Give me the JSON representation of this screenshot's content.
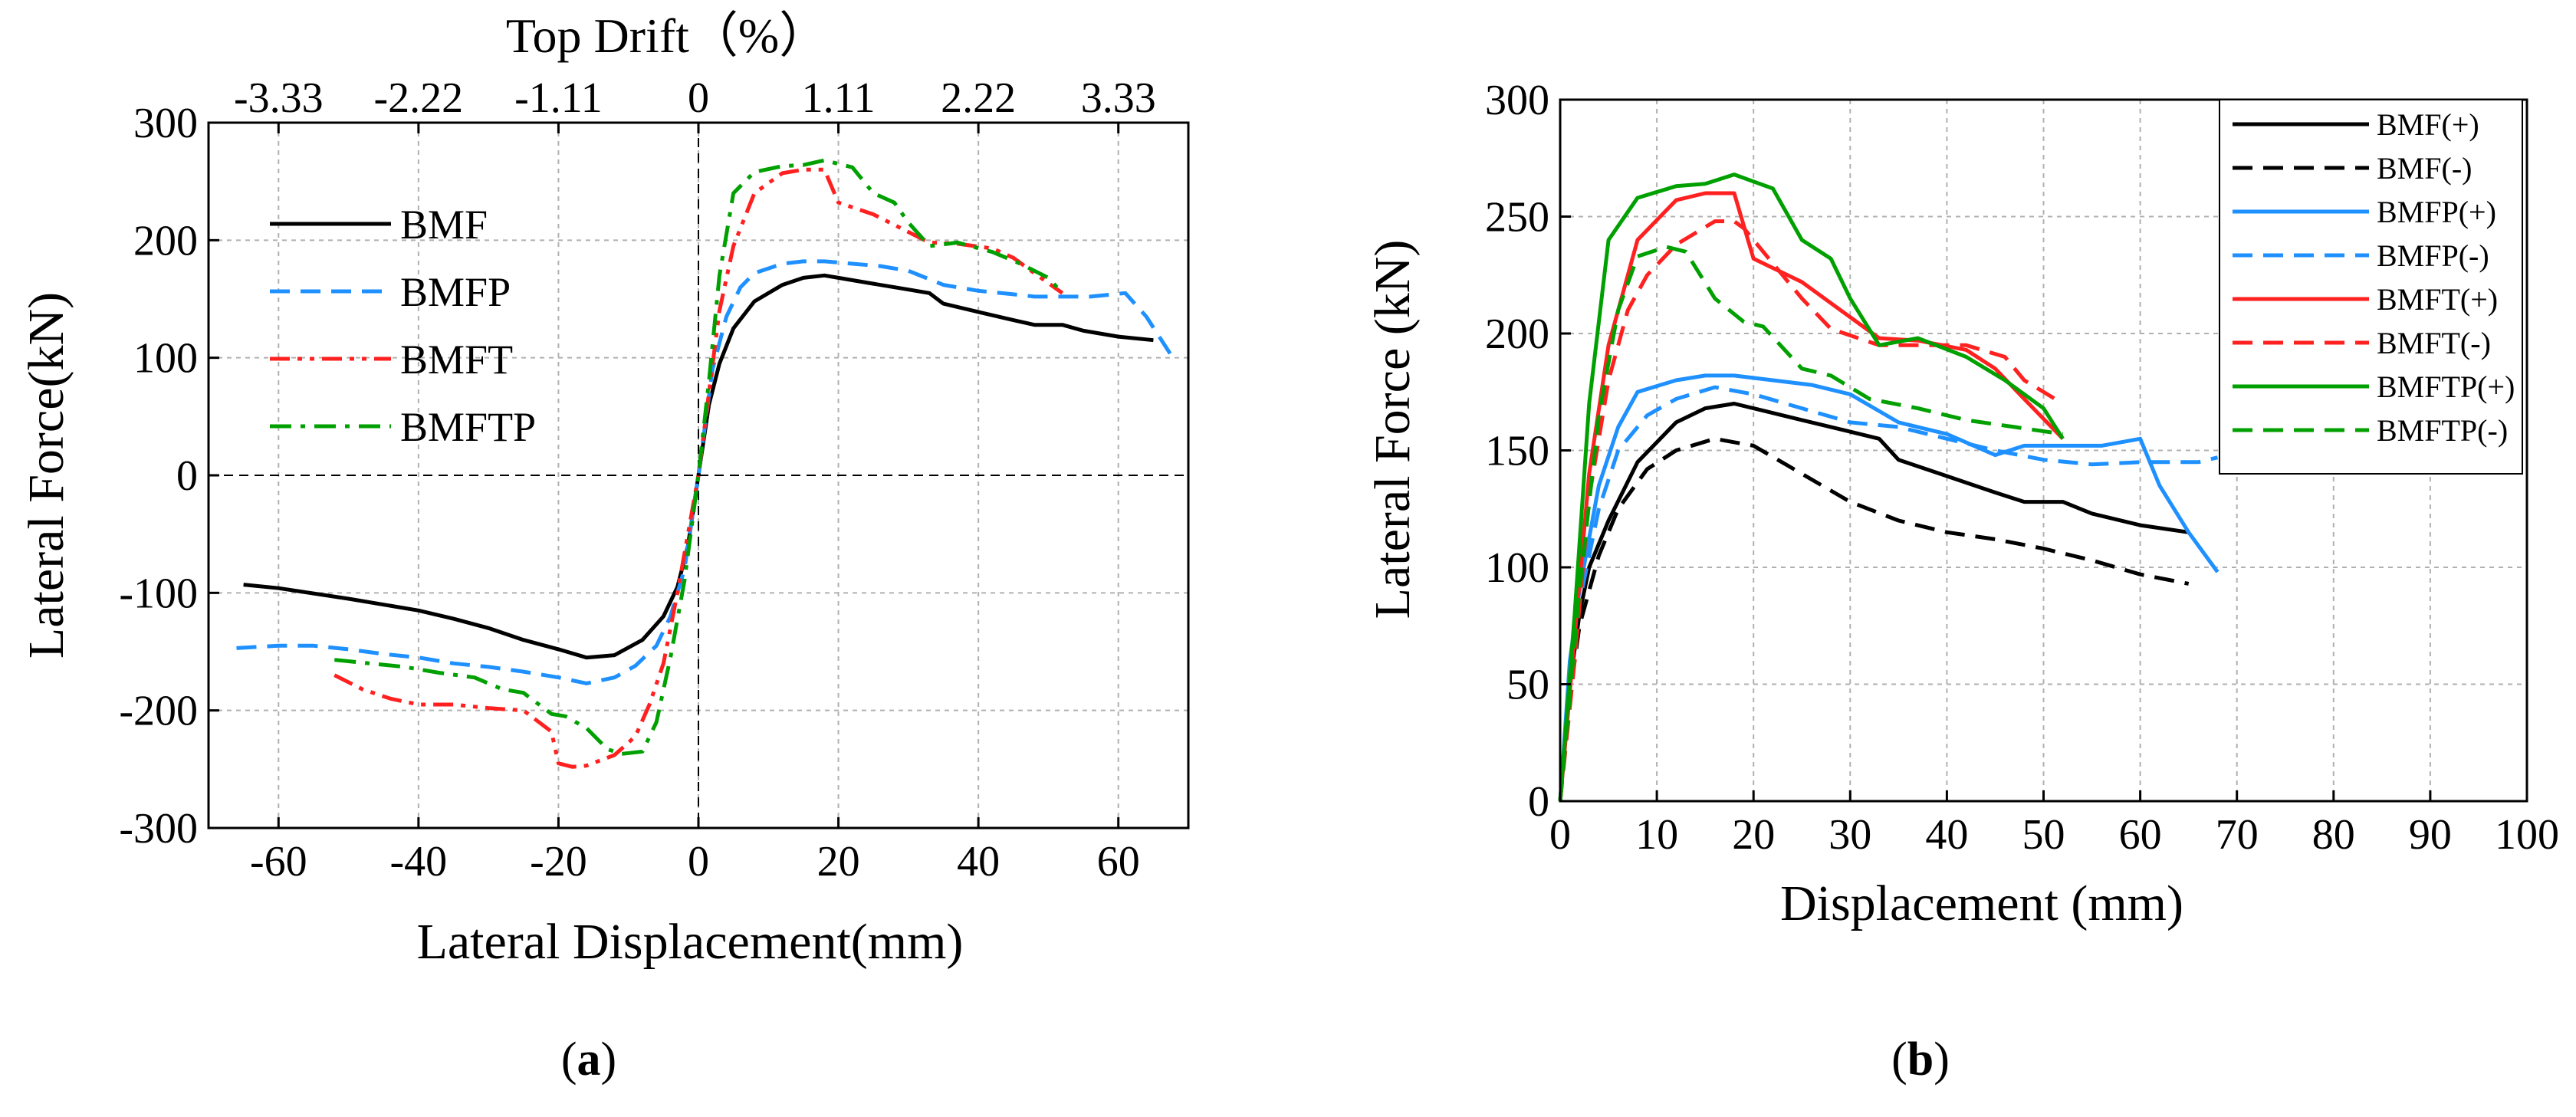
{
  "figure": {
    "panel_a_caption_open": "(",
    "panel_a_caption_letter": "a",
    "panel_a_caption_close": ")",
    "panel_b_caption_open": "(",
    "panel_b_caption_letter": "b",
    "panel_b_caption_close": ")"
  },
  "chart_data": [
    {
      "id": "a",
      "type": "line",
      "title": "",
      "xlabel": "Lateral Displacement(mm)",
      "ylabel": "Lateral Force(kN)",
      "top_axis_label": "Top Drift（%）",
      "xlim": [
        -70,
        70
      ],
      "ylim": [
        -300,
        300
      ],
      "x_ticks": [
        "-60",
        "-40",
        "-20",
        "0",
        "20",
        "40",
        "60"
      ],
      "y_ticks": [
        "-300",
        "-200",
        "-100",
        "0",
        "100",
        "200",
        "300"
      ],
      "top_ticks": [
        "-3.33",
        "-2.22",
        "-1.11",
        "0",
        "1.11",
        "2.22",
        "3.33"
      ],
      "grid": true,
      "legend_position": "top-left",
      "series": [
        {
          "name": "BMF",
          "color": "#000000",
          "dash": "solid",
          "x": [
            -65,
            -60,
            -50,
            -40,
            -35,
            -30,
            -25,
            -20,
            -16,
            -12,
            -8,
            -5,
            -3,
            -1.5,
            0,
            1.5,
            3,
            5,
            8,
            12,
            15,
            18,
            20,
            25,
            30,
            33,
            35,
            40,
            45,
            48,
            52,
            55,
            60,
            65
          ],
          "y": [
            -93,
            -96,
            -105,
            -115,
            -122,
            -130,
            -140,
            -148,
            -155,
            -153,
            -140,
            -120,
            -95,
            -60,
            0,
            60,
            95,
            125,
            148,
            162,
            168,
            170,
            168,
            163,
            158,
            155,
            146,
            139,
            132,
            128,
            128,
            123,
            118,
            115
          ]
        },
        {
          "name": "BMFP",
          "color": "#1e90ff",
          "dash": "dash",
          "x": [
            -66,
            -60,
            -55,
            -50,
            -45,
            -40,
            -35,
            -30,
            -25,
            -20,
            -16,
            -12,
            -9,
            -6,
            -4,
            -2,
            0,
            2,
            4,
            6,
            8,
            12,
            15,
            18,
            22,
            26,
            30,
            35,
            40,
            45,
            48,
            52,
            56,
            61,
            64,
            68
          ],
          "y": [
            -147,
            -145,
            -145,
            -148,
            -152,
            -155,
            -160,
            -163,
            -167,
            -172,
            -177,
            -172,
            -162,
            -145,
            -120,
            -80,
            0,
            90,
            135,
            160,
            172,
            180,
            182,
            182,
            180,
            178,
            174,
            162,
            157,
            154,
            152,
            152,
            152,
            155,
            135,
            98
          ]
        },
        {
          "name": "BMFT",
          "color": "#ff2020",
          "dash": "dashdotdot",
          "x": [
            -52,
            -48,
            -44,
            -40,
            -35,
            -30,
            -25,
            -21,
            -20,
            -18,
            -16,
            -12,
            -9,
            -7,
            -5,
            -3,
            -1.5,
            0,
            1.5,
            3,
            5,
            8,
            12,
            15,
            18,
            20,
            25,
            30,
            33,
            37,
            42,
            45,
            48,
            52
          ],
          "y": [
            -170,
            -182,
            -190,
            -195,
            -195,
            -198,
            -200,
            -218,
            -245,
            -248,
            -247,
            -238,
            -222,
            -195,
            -160,
            -100,
            -50,
            0,
            70,
            140,
            195,
            240,
            257,
            260,
            260,
            232,
            222,
            207,
            198,
            197,
            193,
            185,
            172,
            155
          ]
        },
        {
          "name": "BMFTP",
          "color": "#00a000",
          "dash": "dashdot",
          "x": [
            -52,
            -47,
            -42,
            -37,
            -32,
            -28,
            -25,
            -21,
            -19,
            -16,
            -13,
            -11,
            -8,
            -6,
            -4,
            -2,
            0,
            1.5,
            3,
            5,
            8,
            12,
            15,
            18,
            20,
            22,
            25,
            28,
            30,
            33,
            37,
            42,
            46,
            50,
            52
          ],
          "y": [
            -157,
            -160,
            -163,
            -168,
            -172,
            -182,
            -185,
            -203,
            -205,
            -215,
            -233,
            -237,
            -235,
            -210,
            -155,
            -90,
            0,
            80,
            170,
            240,
            258,
            263,
            264,
            268,
            265,
            262,
            240,
            232,
            215,
            195,
            198,
            190,
            180,
            168,
            155
          ]
        }
      ]
    },
    {
      "id": "b",
      "type": "line",
      "title": "",
      "xlabel": "Displacement (mm)",
      "ylabel": "Lateral Force (kN)",
      "xlim": [
        0,
        100
      ],
      "ylim": [
        0,
        300
      ],
      "x_ticks": [
        "0",
        "10",
        "20",
        "30",
        "40",
        "50",
        "60",
        "70",
        "80",
        "90",
        "100"
      ],
      "y_ticks": [
        "0",
        "50",
        "100",
        "150",
        "200",
        "250",
        "300"
      ],
      "grid": true,
      "legend_position": "top-right",
      "series": [
        {
          "name": "BMF(+)",
          "color": "#000000",
          "dash": "solid",
          "x": [
            0,
            1,
            2,
            3,
            5,
            8,
            12,
            15,
            18,
            20,
            25,
            30,
            33,
            35,
            40,
            45,
            48,
            52,
            55,
            60,
            65
          ],
          "y": [
            0,
            50,
            80,
            100,
            120,
            145,
            162,
            168,
            170,
            168,
            163,
            158,
            155,
            146,
            139,
            132,
            128,
            128,
            123,
            118,
            115
          ]
        },
        {
          "name": "BMF(-)",
          "color": "#000000",
          "dash": "dash",
          "x": [
            0,
            1,
            2,
            4,
            6,
            9,
            12,
            16,
            20,
            25,
            30,
            35,
            40,
            45,
            50,
            55,
            60,
            65
          ],
          "y": [
            0,
            45,
            75,
            105,
            125,
            142,
            150,
            155,
            152,
            140,
            128,
            120,
            115,
            112,
            108,
            103,
            97,
            93
          ]
        },
        {
          "name": "BMFP(+)",
          "color": "#1e90ff",
          "dash": "solid",
          "x": [
            0,
            1,
            2,
            4,
            6,
            8,
            12,
            15,
            18,
            22,
            26,
            30,
            35,
            40,
            45,
            48,
            52,
            56,
            60,
            62,
            65,
            68
          ],
          "y": [
            0,
            60,
            90,
            135,
            160,
            175,
            180,
            182,
            182,
            180,
            178,
            174,
            162,
            157,
            148,
            152,
            152,
            152,
            155,
            135,
            115,
            98
          ]
        },
        {
          "name": "BMFP(-)",
          "color": "#1e90ff",
          "dash": "dash",
          "x": [
            0,
            1,
            2,
            4,
            6,
            9,
            12,
            16,
            20,
            25,
            30,
            35,
            40,
            45,
            50,
            55,
            60,
            66,
            68
          ],
          "y": [
            0,
            55,
            85,
            125,
            150,
            165,
            172,
            177,
            174,
            168,
            162,
            160,
            155,
            150,
            146,
            144,
            145,
            145,
            147
          ]
        },
        {
          "name": "BMFT(+)",
          "color": "#ff2020",
          "dash": "solid",
          "x": [
            0,
            1.5,
            3,
            5,
            8,
            12,
            15,
            18,
            20,
            25,
            30,
            33,
            37,
            42,
            45,
            48,
            52
          ],
          "y": [
            0,
            70,
            140,
            195,
            240,
            257,
            260,
            260,
            232,
            222,
            207,
            198,
            197,
            193,
            185,
            172,
            155
          ]
        },
        {
          "name": "BMFT(-)",
          "color": "#ff2020",
          "dash": "dash",
          "x": [
            0,
            1.5,
            3,
            5,
            7,
            9,
            12,
            16,
            18,
            19,
            21,
            25,
            28,
            33,
            37,
            42,
            46,
            48,
            52
          ],
          "y": [
            0,
            60,
            130,
            180,
            210,
            225,
            238,
            248,
            248,
            245,
            235,
            215,
            202,
            195,
            195,
            195,
            190,
            180,
            170
          ]
        },
        {
          "name": "BMFTP(+)",
          "color": "#00a000",
          "dash": "solid",
          "x": [
            0,
            1.5,
            3,
            5,
            8,
            12,
            15,
            18,
            20,
            22,
            25,
            28,
            30,
            33,
            37,
            42,
            46,
            50,
            52
          ],
          "y": [
            0,
            80,
            170,
            240,
            258,
            263,
            264,
            268,
            265,
            262,
            240,
            232,
            215,
            195,
            198,
            190,
            180,
            168,
            155
          ]
        },
        {
          "name": "BMFTP(-)",
          "color": "#00a000",
          "dash": "dash",
          "x": [
            0,
            2,
            4,
            6,
            8,
            11,
            13,
            16,
            19,
            21,
            25,
            28,
            32,
            37,
            42,
            47,
            52
          ],
          "y": [
            0,
            90,
            165,
            210,
            233,
            237,
            235,
            215,
            205,
            203,
            185,
            182,
            172,
            168,
            163,
            160,
            157
          ]
        }
      ]
    }
  ]
}
